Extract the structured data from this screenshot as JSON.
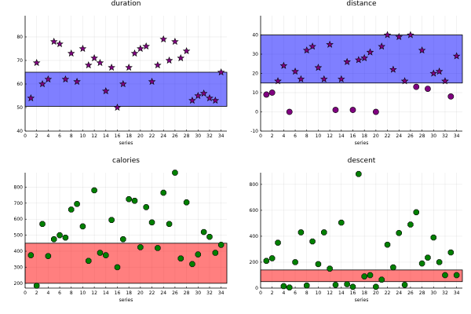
{
  "figure": {
    "layout": "2x2 grid"
  },
  "chart_data": [
    {
      "type": "scatter",
      "title": "duration",
      "xlabel": "series",
      "ylabel": "",
      "xlim": [
        0,
        35
      ],
      "ylim": [
        40,
        89
      ],
      "xticks": [
        0,
        2,
        4,
        6,
        8,
        10,
        12,
        14,
        16,
        18,
        20,
        22,
        24,
        26,
        28,
        30,
        32,
        34
      ],
      "yticks": [
        40,
        50,
        60,
        70,
        80
      ],
      "grid": true,
      "marker": "star",
      "marker_color": "#800080",
      "band": {
        "from": 50.5,
        "to": 65,
        "color": "#0000ff"
      },
      "x": [
        1,
        2,
        3,
        4,
        5,
        6,
        7,
        8,
        9,
        10,
        11,
        12,
        13,
        14,
        15,
        16,
        17,
        18,
        19,
        20,
        21,
        22,
        23,
        24,
        25,
        26,
        27,
        28,
        29,
        30,
        31,
        32,
        33,
        34
      ],
      "y": [
        54,
        69,
        60,
        62,
        78,
        77,
        62,
        73,
        61,
        75,
        68,
        71,
        69,
        57,
        67,
        50,
        60,
        67,
        73,
        75,
        76,
        61,
        68,
        79,
        70,
        78,
        71,
        74,
        53,
        55,
        56,
        54,
        53,
        65
      ]
    },
    {
      "type": "scatter",
      "title": "distance",
      "xlabel": "series",
      "ylabel": "",
      "xlim": [
        0,
        35
      ],
      "ylim": [
        -10,
        50
      ],
      "xticks": [
        0,
        2,
        4,
        6,
        8,
        10,
        12,
        14,
        16,
        18,
        20,
        22,
        24,
        26,
        28,
        30,
        32,
        34
      ],
      "yticks": [
        -10,
        0,
        10,
        20,
        30,
        40
      ],
      "grid": true,
      "markers": [
        "circle",
        "circle",
        "star",
        "star",
        "circle",
        "star",
        "star",
        "star",
        "star",
        "star",
        "star",
        "star",
        "circle",
        "star",
        "star",
        "circle",
        "star",
        "star",
        "star",
        "circle",
        "star",
        "star",
        "star",
        "star",
        "star",
        "star",
        "circle",
        "star",
        "circle",
        "star",
        "star",
        "star",
        "circle",
        "star"
      ],
      "marker_color": "#800080",
      "band": {
        "from": 15,
        "to": 40,
        "color": "#0000ff"
      },
      "x": [
        1,
        2,
        3,
        4,
        5,
        6,
        7,
        8,
        9,
        10,
        11,
        12,
        13,
        14,
        15,
        16,
        17,
        18,
        19,
        20,
        21,
        22,
        23,
        24,
        25,
        26,
        27,
        28,
        29,
        30,
        31,
        32,
        33,
        34
      ],
      "y": [
        9,
        10,
        16,
        24,
        0,
        21,
        17,
        32,
        34,
        23,
        17,
        35,
        1,
        17,
        26,
        1,
        27,
        28,
        31,
        0,
        34,
        40,
        22,
        39,
        16,
        40,
        13,
        32,
        12,
        20,
        21,
        16,
        8,
        29
      ]
    },
    {
      "type": "scatter",
      "title": "calories",
      "xlabel": "series",
      "ylabel": "",
      "xlim": [
        0,
        35
      ],
      "ylim": [
        170,
        890
      ],
      "xticks": [
        0,
        2,
        4,
        6,
        8,
        10,
        12,
        14,
        16,
        18,
        20,
        22,
        24,
        26,
        28,
        30,
        32,
        34
      ],
      "yticks": [
        200,
        300,
        400,
        500,
        600,
        700,
        800
      ],
      "grid": true,
      "marker": "octagon",
      "marker_color": "#008000",
      "band": {
        "from": 200,
        "to": 450,
        "color": "#ff0000"
      },
      "x": [
        1,
        2,
        3,
        4,
        5,
        6,
        7,
        8,
        9,
        10,
        11,
        12,
        13,
        14,
        15,
        16,
        17,
        18,
        19,
        20,
        21,
        22,
        23,
        24,
        25,
        26,
        27,
        28,
        29,
        30,
        31,
        32,
        33,
        34
      ],
      "y": [
        375,
        185,
        570,
        370,
        475,
        500,
        485,
        660,
        695,
        555,
        340,
        780,
        390,
        375,
        595,
        300,
        475,
        725,
        715,
        425,
        675,
        580,
        420,
        765,
        570,
        890,
        355,
        705,
        320,
        380,
        520,
        490,
        390,
        440
      ]
    },
    {
      "type": "scatter",
      "title": "descent",
      "xlabel": "series",
      "ylabel": "",
      "xlim": [
        0,
        35
      ],
      "ylim": [
        0,
        890
      ],
      "xticks": [
        0,
        2,
        4,
        6,
        8,
        10,
        12,
        14,
        16,
        18,
        20,
        22,
        24,
        26,
        28,
        30,
        32,
        34
      ],
      "yticks": [
        0,
        200,
        400,
        600,
        800
      ],
      "grid": true,
      "marker": "octagon",
      "marker_color": "#008000",
      "band": {
        "from": 50,
        "to": 140,
        "color": "#ff0000"
      },
      "x": [
        1,
        2,
        3,
        4,
        5,
        6,
        7,
        8,
        9,
        10,
        11,
        12,
        13,
        14,
        15,
        16,
        17,
        18,
        19,
        20,
        21,
        22,
        23,
        24,
        25,
        26,
        27,
        28,
        29,
        30,
        31,
        32,
        33,
        34
      ],
      "y": [
        210,
        230,
        350,
        15,
        5,
        200,
        430,
        20,
        360,
        185,
        430,
        150,
        25,
        505,
        30,
        10,
        880,
        90,
        100,
        10,
        65,
        335,
        160,
        425,
        25,
        490,
        585,
        190,
        235,
        390,
        200,
        100,
        275,
        100
      ]
    }
  ]
}
